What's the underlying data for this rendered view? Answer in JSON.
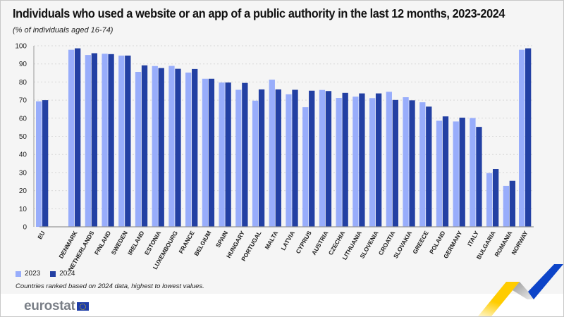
{
  "title": "Individuals who used a website or an app of a public authority in the last 12 months, 2023-2024",
  "subtitle": "(% of individuals aged 16-74)",
  "note": "Countries ranked based on 2024 data, highest to lowest values.",
  "logo": "eurostat",
  "colors": {
    "2023": "#98adfb",
    "2024": "#2340a3"
  },
  "chart_data": {
    "type": "bar",
    "title": "Individuals who used a website or an app of a public authority in the last 12 months, 2023-2024",
    "ylim": [
      0,
      100
    ],
    "yticks": [
      0,
      10,
      20,
      30,
      40,
      50,
      60,
      70,
      80,
      90,
      100
    ],
    "grid": true,
    "legend": "bottom-left",
    "categories": [
      "EU",
      "DENMARK",
      "NETHERLANDS",
      "FINLAND",
      "SWEDEN",
      "IRELAND",
      "ESTONIA",
      "LUXEMBOURG",
      "FRANCE",
      "BELGIUM",
      "SPAIN",
      "HUNGARY",
      "PORTUGAL",
      "MALTA",
      "LATVIA",
      "CYPRUS",
      "AUSTRIA",
      "CZECHIA",
      "LITHUANIA",
      "SLOVENIA",
      "CROATIA",
      "SLOVAKIA",
      "GREECE",
      "POLAND",
      "GERMANY",
      "ITALY",
      "BULGARIA",
      "ROMANIA",
      "NORWAY"
    ],
    "series": [
      {
        "name": "2023",
        "values": [
          69.3,
          97.8,
          94.9,
          95.6,
          94.6,
          85.6,
          88.8,
          88.9,
          85.2,
          81.8,
          79.7,
          75.7,
          69.7,
          81.3,
          73.2,
          66.1,
          75.6,
          71.2,
          71.9,
          71.1,
          74.6,
          71.6,
          68.8,
          58.6,
          58.2,
          60.1,
          29.7,
          22.6,
          97.8
        ]
      },
      {
        "name": "2024",
        "values": [
          70.0,
          98.6,
          95.9,
          95.4,
          94.6,
          89.2,
          87.7,
          87.3,
          87.2,
          81.8,
          79.7,
          79.5,
          75.9,
          75.9,
          75.7,
          75.2,
          75.0,
          74.0,
          73.7,
          73.7,
          70.1,
          69.9,
          66.4,
          61.0,
          60.3,
          55.2,
          31.9,
          25.4,
          98.6
        ]
      }
    ]
  }
}
